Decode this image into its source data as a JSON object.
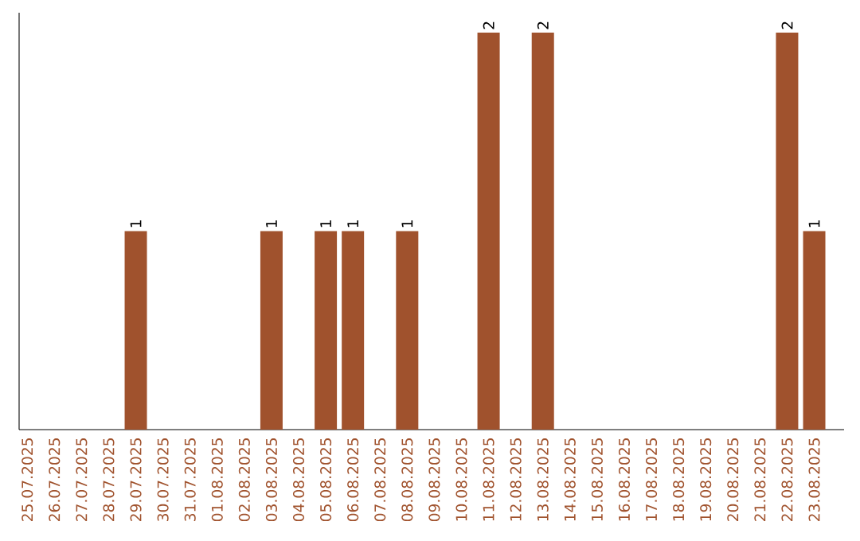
{
  "chart_data": {
    "type": "bar",
    "categories": [
      "25.07.2025",
      "26.07.2025",
      "27.07.2025",
      "28.07.2025",
      "29.07.2025",
      "30.07.2025",
      "31.07.2025",
      "01.08.2025",
      "02.08.2025",
      "03.08.2025",
      "04.08.2025",
      "05.08.2025",
      "06.08.2025",
      "07.08.2025",
      "08.08.2025",
      "09.08.2025",
      "10.08.2025",
      "11.08.2025",
      "12.08.2025",
      "13.08.2025",
      "14.08.2025",
      "15.08.2025",
      "16.08.2025",
      "17.08.2025",
      "18.08.2025",
      "19.08.2025",
      "20.08.2025",
      "21.08.2025",
      "22.08.2025",
      "23.08.2025"
    ],
    "values": [
      0,
      0,
      0,
      0,
      1,
      0,
      0,
      0,
      0,
      1,
      0,
      1,
      1,
      0,
      1,
      0,
      0,
      2,
      0,
      2,
      0,
      0,
      0,
      0,
      0,
      0,
      0,
      0,
      2,
      1
    ],
    "value_labels": [
      null,
      null,
      null,
      null,
      "1",
      null,
      null,
      null,
      null,
      "1",
      null,
      "1",
      "1",
      null,
      "1",
      null,
      null,
      "2",
      null,
      "2",
      null,
      null,
      null,
      null,
      null,
      null,
      null,
      null,
      "2",
      "1"
    ],
    "color": "#a0522d",
    "ylim": [
      0,
      2.1
    ],
    "tick_labels": "x"
  }
}
